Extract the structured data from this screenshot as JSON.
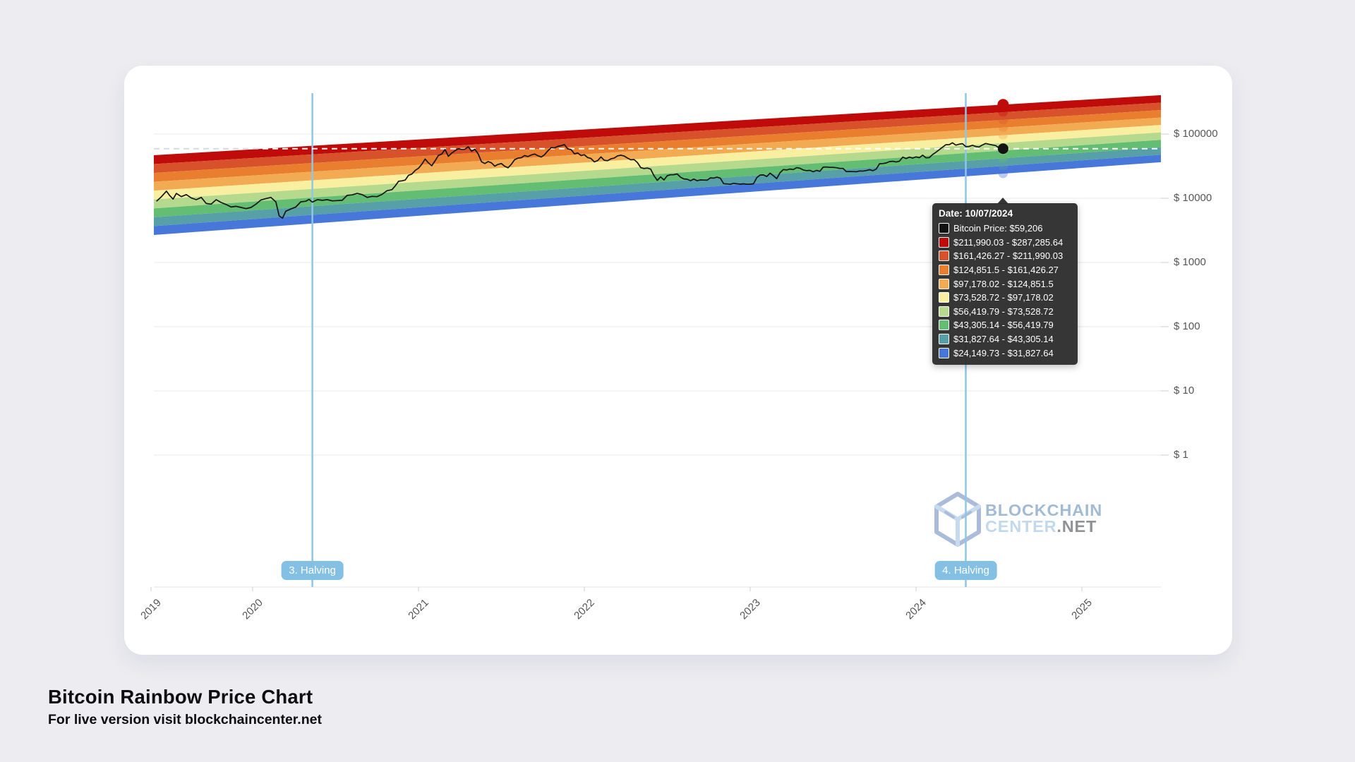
{
  "page": {
    "title": "Bitcoin Rainbow Price Chart",
    "subtitle": "For live version visit blockchaincenter.net"
  },
  "branding": {
    "logo_line1": "BLOCKCHAIN",
    "logo_line2": "CENTER",
    "logo_suffix": ".NET",
    "icon": "blockchain-cube-icon"
  },
  "colors": {
    "page_bg": "#ececf1",
    "card_bg": "#ffffff",
    "grid": "#e9e9ed",
    "axis_line": "#e3e3e7",
    "tick": "#cfcfd4",
    "halving_line": "#8fc6e8",
    "halving_pill": "#84c0e4",
    "price_line": "#141414",
    "dashed_left": "#d5dbe4",
    "dashed_right": "#ffffff",
    "tooltip_bg": "rgba(43,43,43,0.95)"
  },
  "tooltip": {
    "date_label": "Date: 10/07/2024",
    "rows": [
      {
        "color": "#111111",
        "text": "Bitcoin Price: $59,206"
      },
      {
        "color": "#c00b0b",
        "text": "$211,990.03 - $287,285.64"
      },
      {
        "color": "#d7512a",
        "text": "$161,426.27 - $211,990.03"
      },
      {
        "color": "#e97f2e",
        "text": "$124,851.5 - $161,426.27"
      },
      {
        "color": "#f2ab53",
        "text": "$97,178.02 - $124,851.5"
      },
      {
        "color": "#f8f0a0",
        "text": "$73,528.72 - $97,178.02"
      },
      {
        "color": "#b6da8d",
        "text": "$56,419.79 - $73,528.72"
      },
      {
        "color": "#63bd72",
        "text": "$43,305.14 - $56,419.79"
      },
      {
        "color": "#57a0a7",
        "text": "$31,827.64 - $43,305.14"
      },
      {
        "color": "#4777d8",
        "text": "$24,149.73 - $31,827.64"
      }
    ]
  },
  "chart_data": {
    "type": "line",
    "title": "Bitcoin Rainbow Price Chart",
    "y_axis": {
      "scale": "log",
      "ticks": [
        {
          "label": "$ 100000",
          "value": 100000
        },
        {
          "label": "$ 10000",
          "value": 10000
        },
        {
          "label": "$ 1000",
          "value": 1000
        },
        {
          "label": "$ 100",
          "value": 100
        },
        {
          "label": "$ 10",
          "value": 10
        },
        {
          "label": "$ 1",
          "value": 1
        }
      ]
    },
    "x_axis": {
      "ticks": [
        "2019",
        "2020",
        "2021",
        "2022",
        "2023",
        "2024",
        "2025"
      ]
    },
    "bands": [
      {
        "color": "#c00b0b",
        "from": 211990.03,
        "to": 287285.64
      },
      {
        "color": "#d7512a",
        "from": 161426.27,
        "to": 211990.03
      },
      {
        "color": "#e97f2e",
        "from": 124851.5,
        "to": 161426.27
      },
      {
        "color": "#f2ab53",
        "from": 97178.02,
        "to": 124851.5
      },
      {
        "color": "#f8f0a0",
        "from": 73528.72,
        "to": 97178.02
      },
      {
        "color": "#b6da8d",
        "from": 56419.79,
        "to": 73528.72
      },
      {
        "color": "#63bd72",
        "from": 43305.14,
        "to": 56419.79
      },
      {
        "color": "#57a0a7",
        "from": 31827.64,
        "to": 43305.14
      },
      {
        "color": "#4777d8",
        "from": 24149.73,
        "to": 31827.64
      }
    ],
    "halvings": [
      {
        "label": "3. Halving",
        "year_frac": 2020.36
      },
      {
        "label": "4. Halving",
        "year_frac": 2024.3
      }
    ],
    "current_point": {
      "date": "10/07/2024",
      "price": 59206,
      "year_frac": 2024.525,
      "price_label": "$59,206"
    },
    "price_series": [
      [
        2019.42,
        9000
      ],
      [
        2019.45,
        10600
      ],
      [
        2019.48,
        12900
      ],
      [
        2019.5,
        11000
      ],
      [
        2019.52,
        9700
      ],
      [
        2019.54,
        11900
      ],
      [
        2019.57,
        10600
      ],
      [
        2019.6,
        11400
      ],
      [
        2019.63,
        10100
      ],
      [
        2019.66,
        9500
      ],
      [
        2019.69,
        10300
      ],
      [
        2019.72,
        8300
      ],
      [
        2019.75,
        8100
      ],
      [
        2019.78,
        9500
      ],
      [
        2019.81,
        8600
      ],
      [
        2019.84,
        8000
      ],
      [
        2019.87,
        7300
      ],
      [
        2019.9,
        7500
      ],
      [
        2019.93,
        7200
      ],
      [
        2019.96,
        6900
      ],
      [
        2019.99,
        7200
      ],
      [
        2020.02,
        8100
      ],
      [
        2020.05,
        9400
      ],
      [
        2020.08,
        9900
      ],
      [
        2020.11,
        10300
      ],
      [
        2020.14,
        8800
      ],
      [
        2020.16,
        5300
      ],
      [
        2020.18,
        4900
      ],
      [
        2020.2,
        6300
      ],
      [
        2020.23,
        6800
      ],
      [
        2020.26,
        7300
      ],
      [
        2020.29,
        8800
      ],
      [
        2020.32,
        9000
      ],
      [
        2020.34,
        9600
      ],
      [
        2020.36,
        8700
      ],
      [
        2020.39,
        9500
      ],
      [
        2020.42,
        9300
      ],
      [
        2020.45,
        9500
      ],
      [
        2020.48,
        9100
      ],
      [
        2020.51,
        9200
      ],
      [
        2020.54,
        9300
      ],
      [
        2020.57,
        11100
      ],
      [
        2020.6,
        11300
      ],
      [
        2020.63,
        11900
      ],
      [
        2020.66,
        11400
      ],
      [
        2020.69,
        10300
      ],
      [
        2020.72,
        10700
      ],
      [
        2020.75,
        10600
      ],
      [
        2020.78,
        11500
      ],
      [
        2020.81,
        13100
      ],
      [
        2020.84,
        13600
      ],
      [
        2020.86,
        15600
      ],
      [
        2020.88,
        18400
      ],
      [
        2020.9,
        18700
      ],
      [
        2020.92,
        19200
      ],
      [
        2020.94,
        22800
      ],
      [
        2020.96,
        23800
      ],
      [
        2020.98,
        27100
      ],
      [
        2021.0,
        29400
      ],
      [
        2021.02,
        33900
      ],
      [
        2021.04,
        40800
      ],
      [
        2021.06,
        35500
      ],
      [
        2021.08,
        32100
      ],
      [
        2021.1,
        38300
      ],
      [
        2021.12,
        46400
      ],
      [
        2021.14,
        48700
      ],
      [
        2021.16,
        57500
      ],
      [
        2021.18,
        45100
      ],
      [
        2021.2,
        50400
      ],
      [
        2021.22,
        54900
      ],
      [
        2021.24,
        58900
      ],
      [
        2021.26,
        57800
      ],
      [
        2021.28,
        58100
      ],
      [
        2021.3,
        63500
      ],
      [
        2021.32,
        54000
      ],
      [
        2021.34,
        58000
      ],
      [
        2021.36,
        49000
      ],
      [
        2021.38,
        37000
      ],
      [
        2021.4,
        34700
      ],
      [
        2021.42,
        37300
      ],
      [
        2021.44,
        35600
      ],
      [
        2021.46,
        31600
      ],
      [
        2021.48,
        33800
      ],
      [
        2021.5,
        34700
      ],
      [
        2021.52,
        31500
      ],
      [
        2021.54,
        29800
      ],
      [
        2021.56,
        33900
      ],
      [
        2021.58,
        39900
      ],
      [
        2021.6,
        42200
      ],
      [
        2021.62,
        42800
      ],
      [
        2021.64,
        46300
      ],
      [
        2021.66,
        44600
      ],
      [
        2021.68,
        47200
      ],
      [
        2021.7,
        48900
      ],
      [
        2021.72,
        46000
      ],
      [
        2021.74,
        43800
      ],
      [
        2021.76,
        47700
      ],
      [
        2021.78,
        54900
      ],
      [
        2021.8,
        61300
      ],
      [
        2021.82,
        60900
      ],
      [
        2021.84,
        64300
      ],
      [
        2021.86,
        66000
      ],
      [
        2021.88,
        68500
      ],
      [
        2021.9,
        58700
      ],
      [
        2021.92,
        57300
      ],
      [
        2021.94,
        49300
      ],
      [
        2021.96,
        50800
      ],
      [
        2021.98,
        46300
      ],
      [
        2022.0,
        47700
      ],
      [
        2022.02,
        43100
      ],
      [
        2022.04,
        41700
      ],
      [
        2022.06,
        36900
      ],
      [
        2022.08,
        38500
      ],
      [
        2022.1,
        44000
      ],
      [
        2022.12,
        39100
      ],
      [
        2022.14,
        38400
      ],
      [
        2022.16,
        41100
      ],
      [
        2022.18,
        42200
      ],
      [
        2022.2,
        45800
      ],
      [
        2022.22,
        46800
      ],
      [
        2022.24,
        45500
      ],
      [
        2022.26,
        42300
      ],
      [
        2022.28,
        39700
      ],
      [
        2022.3,
        40100
      ],
      [
        2022.32,
        36000
      ],
      [
        2022.34,
        30100
      ],
      [
        2022.36,
        29000
      ],
      [
        2022.38,
        29500
      ],
      [
        2022.4,
        28400
      ],
      [
        2022.42,
        22500
      ],
      [
        2022.44,
        19000
      ],
      [
        2022.46,
        21500
      ],
      [
        2022.48,
        19300
      ],
      [
        2022.5,
        22500
      ],
      [
        2022.52,
        23200
      ],
      [
        2022.54,
        23300
      ],
      [
        2022.56,
        23900
      ],
      [
        2022.58,
        21300
      ],
      [
        2022.6,
        20000
      ],
      [
        2022.62,
        19800
      ],
      [
        2022.64,
        18800
      ],
      [
        2022.66,
        19900
      ],
      [
        2022.68,
        18800
      ],
      [
        2022.7,
        19300
      ],
      [
        2022.72,
        19200
      ],
      [
        2022.74,
        19100
      ],
      [
        2022.76,
        20800
      ],
      [
        2022.78,
        20600
      ],
      [
        2022.8,
        21300
      ],
      [
        2022.82,
        20500
      ],
      [
        2022.84,
        16900
      ],
      [
        2022.86,
        16700
      ],
      [
        2022.88,
        16500
      ],
      [
        2022.9,
        17100
      ],
      [
        2022.92,
        16800
      ],
      [
        2022.94,
        16600
      ],
      [
        2022.96,
        16800
      ],
      [
        2022.98,
        16500
      ],
      [
        2023.0,
        16600
      ],
      [
        2023.02,
        16800
      ],
      [
        2023.04,
        21000
      ],
      [
        2023.06,
        23000
      ],
      [
        2023.08,
        23100
      ],
      [
        2023.1,
        21800
      ],
      [
        2023.12,
        24600
      ],
      [
        2023.14,
        22400
      ],
      [
        2023.16,
        20200
      ],
      [
        2023.18,
        25000
      ],
      [
        2023.2,
        28000
      ],
      [
        2023.22,
        27600
      ],
      [
        2023.24,
        28500
      ],
      [
        2023.26,
        28000
      ],
      [
        2023.28,
        30000
      ],
      [
        2023.3,
        29300
      ],
      [
        2023.32,
        27600
      ],
      [
        2023.34,
        26900
      ],
      [
        2023.36,
        27200
      ],
      [
        2023.38,
        25900
      ],
      [
        2023.4,
        27200
      ],
      [
        2023.42,
        26300
      ],
      [
        2023.44,
        30500
      ],
      [
        2023.46,
        30700
      ],
      [
        2023.48,
        30300
      ],
      [
        2023.5,
        30300
      ],
      [
        2023.52,
        29900
      ],
      [
        2023.54,
        29200
      ],
      [
        2023.56,
        29200
      ],
      [
        2023.58,
        26000
      ],
      [
        2023.6,
        26100
      ],
      [
        2023.62,
        26000
      ],
      [
        2023.64,
        25900
      ],
      [
        2023.66,
        26600
      ],
      [
        2023.68,
        26500
      ],
      [
        2023.7,
        27000
      ],
      [
        2023.72,
        27900
      ],
      [
        2023.74,
        26900
      ],
      [
        2023.76,
        28500
      ],
      [
        2023.78,
        34500
      ],
      [
        2023.8,
        34700
      ],
      [
        2023.82,
        35400
      ],
      [
        2023.84,
        37300
      ],
      [
        2023.86,
        37700
      ],
      [
        2023.88,
        36700
      ],
      [
        2023.9,
        37800
      ],
      [
        2023.92,
        43800
      ],
      [
        2023.94,
        41600
      ],
      [
        2023.96,
        43700
      ],
      [
        2023.98,
        42300
      ],
      [
        2024.0,
        44200
      ],
      [
        2024.02,
        42800
      ],
      [
        2024.04,
        46900
      ],
      [
        2024.06,
        42600
      ],
      [
        2024.08,
        43000
      ],
      [
        2024.1,
        48000
      ],
      [
        2024.12,
        52000
      ],
      [
        2024.14,
        57000
      ],
      [
        2024.16,
        62500
      ],
      [
        2024.18,
        68300
      ],
      [
        2024.2,
        68500
      ],
      [
        2024.22,
        73100
      ],
      [
        2024.24,
        67200
      ],
      [
        2024.26,
        69400
      ],
      [
        2024.28,
        70800
      ],
      [
        2024.3,
        63800
      ],
      [
        2024.32,
        64000
      ],
      [
        2024.34,
        66900
      ],
      [
        2024.36,
        64000
      ],
      [
        2024.38,
        62900
      ],
      [
        2024.4,
        67500
      ],
      [
        2024.42,
        71400
      ],
      [
        2024.44,
        69400
      ],
      [
        2024.46,
        67800
      ],
      [
        2024.48,
        66200
      ],
      [
        2024.5,
        61000
      ],
      [
        2024.51,
        57100
      ],
      [
        2024.525,
        59206
      ]
    ]
  }
}
